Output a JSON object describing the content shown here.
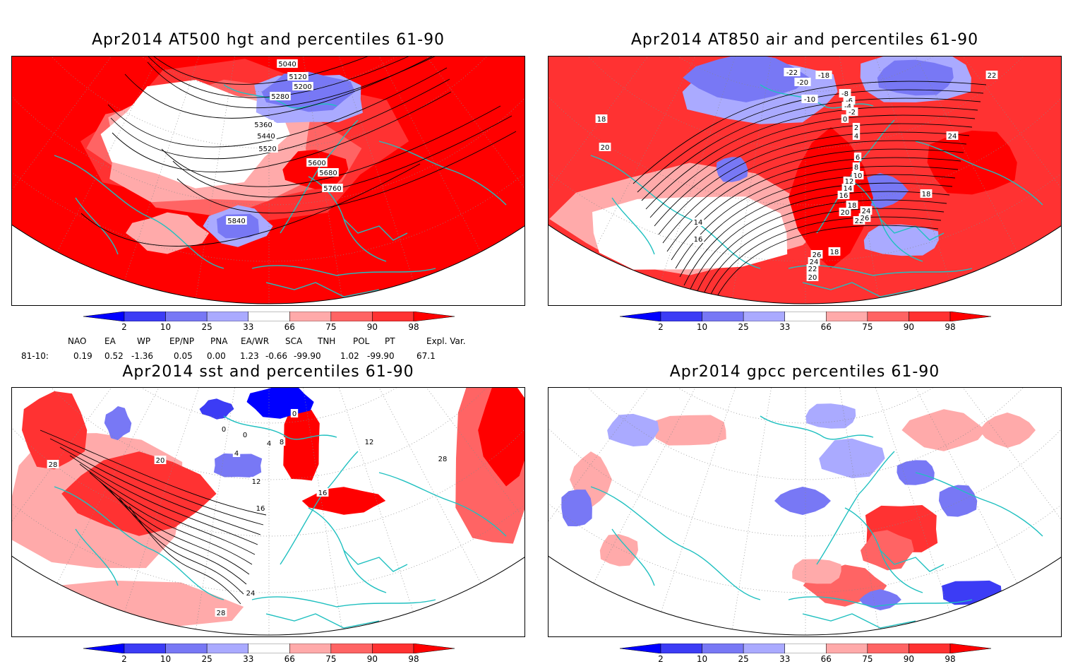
{
  "panels": [
    {
      "id": "p1",
      "title": "Apr2014 AT500 hgt and percentiles 61-90",
      "contour_labels": [
        "5040",
        "5120",
        "5200",
        "5280",
        "5360",
        "5440",
        "5520",
        "5600",
        "5680",
        "5760",
        "5840"
      ]
    },
    {
      "id": "p2",
      "title": "Apr2014 AT850 air and percentiles 61-90",
      "contour_labels": [
        "-22",
        "-18",
        "-20",
        "-10",
        "-8",
        "-6",
        "-4",
        "-2",
        "0",
        "2",
        "4",
        "6",
        "8",
        "10",
        "12",
        "14",
        "16",
        "18",
        "20",
        "22",
        "24",
        "26",
        "14",
        "16",
        "18",
        "18",
        "20",
        "18",
        "24",
        "22",
        "26",
        "24",
        "22",
        "20"
      ]
    },
    {
      "id": "p3",
      "title": "Apr2014 sst and percentiles 61-90",
      "contour_labels": [
        "0",
        "0",
        "0",
        "4",
        "8",
        "4",
        "12",
        "16",
        "16",
        "20",
        "28",
        "24",
        "28",
        "12",
        "28"
      ]
    },
    {
      "id": "p4",
      "title": "Apr2014 gpcc percentiles 61-90",
      "contour_labels": []
    }
  ],
  "colorbar": {
    "ticks": [
      "2",
      "10",
      "25",
      "33",
      "66",
      "75",
      "90",
      "98"
    ],
    "colors": {
      "c0": "#0000ff",
      "c1": "#3c3cf5",
      "c2": "#7878f5",
      "c3": "#aaaaff",
      "c4": "#ffffff",
      "c5": "#ffaaaa",
      "c6": "#ff6464",
      "c7": "#ff3232",
      "c8": "#ff0000"
    }
  },
  "indices": {
    "headers": [
      "NAO",
      "EA",
      "WP",
      "EP/NP",
      "PNA",
      "EA/WR",
      "SCA",
      "TNH",
      "POL",
      "PT",
      "Expl. Var."
    ],
    "row_label": "81-10:",
    "values": [
      "0.19",
      "0.52",
      "-1.36",
      "0.05",
      "0.00",
      "1.23",
      "-0.66",
      "-99.90",
      "1.02",
      "-99.90",
      "67.1"
    ]
  },
  "colors": {
    "coast": "#20c0c0",
    "contour": "#000000",
    "grid": "#888888"
  }
}
